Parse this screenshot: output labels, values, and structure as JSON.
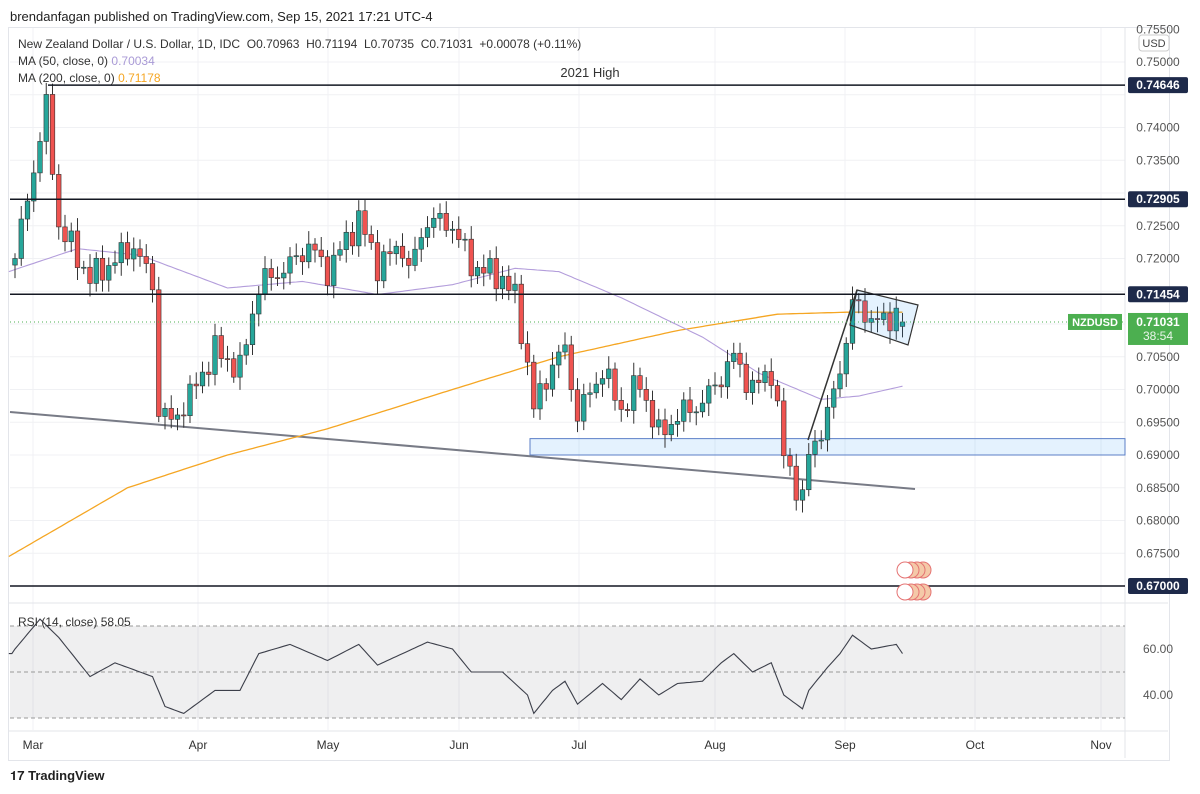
{
  "header": {
    "published": "brendanfagan published on TradingView.com, Sep 15, 2021 17:21 UTC-4"
  },
  "legend": {
    "symbol": "New Zealand Dollar / U.S. Dollar, 1D, IDC",
    "open": "O0.70963",
    "high": "H0.71194",
    "low": "L0.70735",
    "close": "C0.71031",
    "change": "+0.00078 (+0.11%)",
    "ma50_label": "MA (50, close, 0)",
    "ma50_value": "0.70034",
    "ma200_label": "MA (200, close, 0)",
    "ma200_value": "0.71178"
  },
  "footer": {
    "logo": "TradingView"
  },
  "colors": {
    "up": "#26a69a",
    "down": "#ef5350",
    "ma50": "#b39ddb",
    "ma200": "#f5a623",
    "level": "#131722",
    "label_bg": "#1e2a4a",
    "price_label": "#4caf50"
  },
  "chart_data": {
    "type": "candlestick",
    "title": "New Zealand Dollar / U.S. Dollar, 1D",
    "currency": "USD",
    "ylim": [
      0.6705,
      0.755
    ],
    "y_ticks": [
      "0.75500",
      "0.75000",
      "0.74500",
      "0.74000",
      "0.73500",
      "0.73000",
      "0.72500",
      "0.72000",
      "0.70500",
      "0.70000",
      "0.69500",
      "0.69000",
      "0.68500",
      "0.68000",
      "0.67500"
    ],
    "x_ticks": [
      "Mar",
      "Apr",
      "May",
      "Jun",
      "Jul",
      "Aug",
      "Sep",
      "Oct",
      "Nov"
    ],
    "close_keypoints": [
      [
        0,
        0.72
      ],
      [
        5,
        0.743
      ],
      [
        7,
        0.725
      ],
      [
        12,
        0.717
      ],
      [
        15,
        0.719
      ],
      [
        19,
        0.722
      ],
      [
        22,
        0.716
      ],
      [
        23,
        0.697
      ],
      [
        25,
        0.695
      ],
      [
        28,
        0.699
      ],
      [
        32,
        0.706
      ],
      [
        36,
        0.703
      ],
      [
        39,
        0.716
      ],
      [
        44,
        0.719
      ],
      [
        47,
        0.722
      ],
      [
        50,
        0.718
      ],
      [
        55,
        0.726
      ],
      [
        58,
        0.719
      ],
      [
        62,
        0.722
      ],
      [
        63,
        0.718
      ],
      [
        66,
        0.726
      ],
      [
        70,
        0.725
      ],
      [
        73,
        0.719
      ],
      [
        78,
        0.717
      ],
      [
        80,
        0.714
      ],
      [
        82,
        0.704
      ],
      [
        83,
        0.697
      ],
      [
        86,
        0.704
      ],
      [
        88,
        0.706
      ],
      [
        90,
        0.696
      ],
      [
        94,
        0.703
      ],
      [
        97,
        0.697
      ],
      [
        100,
        0.701
      ],
      [
        103,
        0.693
      ],
      [
        106,
        0.696
      ],
      [
        110,
        0.698
      ],
      [
        113,
        0.702
      ],
      [
        115,
        0.705
      ],
      [
        118,
        0.7
      ],
      [
        121,
        0.703
      ],
      [
        123,
        0.69
      ],
      [
        126,
        0.683
      ],
      [
        127,
        0.69
      ],
      [
        130,
        0.696
      ],
      [
        132,
        0.703
      ],
      [
        134,
        0.713
      ],
      [
        137,
        0.711
      ],
      [
        139,
        0.71
      ],
      [
        141,
        0.712
      ],
      [
        142,
        0.71031
      ]
    ],
    "ma50_keypoints": [
      [
        -1,
        0.718
      ],
      [
        10,
        0.7215
      ],
      [
        20,
        0.7205
      ],
      [
        34,
        0.7155
      ],
      [
        46,
        0.7165
      ],
      [
        58,
        0.7145
      ],
      [
        70,
        0.716
      ],
      [
        80,
        0.7185
      ],
      [
        87,
        0.718
      ],
      [
        97,
        0.714
      ],
      [
        110,
        0.708
      ],
      [
        119,
        0.7025
      ],
      [
        129,
        0.6985
      ],
      [
        135,
        0.699
      ],
      [
        142,
        0.7005
      ]
    ],
    "ma200_keypoints": [
      [
        -1,
        0.6745
      ],
      [
        18,
        0.685
      ],
      [
        34,
        0.69
      ],
      [
        50,
        0.694
      ],
      [
        70,
        0.7
      ],
      [
        87,
        0.705
      ],
      [
        106,
        0.709
      ],
      [
        122,
        0.7115
      ],
      [
        133,
        0.7118
      ],
      [
        142,
        0.7118
      ]
    ],
    "rsi": {
      "label": "RSI (14, close)",
      "value": "58.05",
      "ticks": [
        "60.00",
        "40.00"
      ],
      "bands": [
        70,
        30
      ],
      "keypoints": [
        [
          0,
          60
        ],
        [
          4,
          73
        ],
        [
          7,
          65
        ],
        [
          12,
          48
        ],
        [
          16,
          54
        ],
        [
          22,
          48
        ],
        [
          24,
          35
        ],
        [
          27,
          32
        ],
        [
          32,
          42
        ],
        [
          36,
          42
        ],
        [
          39,
          58
        ],
        [
          44,
          62
        ],
        [
          50,
          55
        ],
        [
          55,
          62
        ],
        [
          58,
          53
        ],
        [
          62,
          58
        ],
        [
          66,
          63
        ],
        [
          70,
          60
        ],
        [
          73,
          50
        ],
        [
          78,
          50
        ],
        [
          82,
          40
        ],
        [
          83,
          32
        ],
        [
          86,
          42
        ],
        [
          88,
          46
        ],
        [
          90,
          36
        ],
        [
          94,
          45
        ],
        [
          97,
          38
        ],
        [
          100,
          47
        ],
        [
          103,
          40
        ],
        [
          106,
          45
        ],
        [
          110,
          46
        ],
        [
          113,
          54
        ],
        [
          115,
          58
        ],
        [
          118,
          50
        ],
        [
          121,
          54
        ],
        [
          123,
          40
        ],
        [
          126,
          34
        ],
        [
          127,
          42
        ],
        [
          130,
          52
        ],
        [
          132,
          58
        ],
        [
          134,
          66
        ],
        [
          137,
          60
        ],
        [
          141,
          62
        ],
        [
          142,
          58
        ]
      ]
    },
    "levels": [
      {
        "price": 0.74646,
        "label": "0.74646",
        "note": "2021 High"
      },
      {
        "price": 0.72905,
        "label": "0.72905"
      },
      {
        "price": 0.71454,
        "label": "0.71454"
      },
      {
        "price": 0.67,
        "label": "0.67000"
      }
    ],
    "last_price": {
      "symbol": "NZDUSD",
      "value": "0.71031",
      "countdown": "38:54"
    },
    "support_zone": [
      0.69,
      0.6925
    ]
  }
}
